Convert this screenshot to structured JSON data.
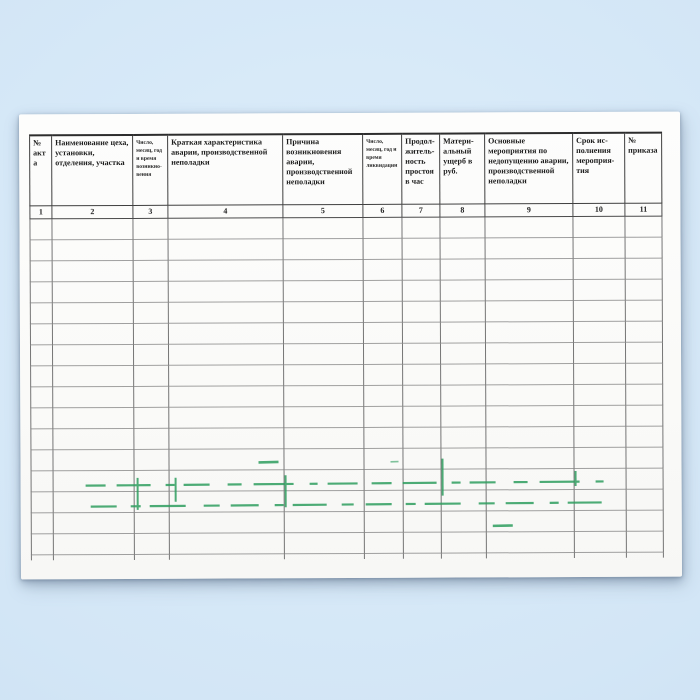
{
  "table": {
    "columns": [
      {
        "num": "1",
        "label": "№ акта",
        "small": false
      },
      {
        "num": "2",
        "label": "Наименование цеха, установки, отделения, участка",
        "small": false
      },
      {
        "num": "3",
        "label": "Число, месяц, год и время возникно­вения",
        "small": true
      },
      {
        "num": "4",
        "label": "Краткая характеристика аварии, производственной неполадки",
        "small": false
      },
      {
        "num": "5",
        "label": "Причина возникновения аварии, производственно­й неполадки",
        "small": false
      },
      {
        "num": "6",
        "label": "Число, месяц, год и время ликвида­ции",
        "small": true
      },
      {
        "num": "7",
        "label": "Продол­житель­ность просто­я в час",
        "small": false
      },
      {
        "num": "8",
        "label": "Матери-альный ущерб в руб.",
        "small": false
      },
      {
        "num": "9",
        "label": "Основные мероприятия по недопущению аварии, производственной неполадки",
        "small": false
      },
      {
        "num": "10",
        "label": "Срок ис-полнения мероприя-тия",
        "small": false
      },
      {
        "num": "11",
        "label": "№ приказа",
        "small": false
      }
    ],
    "empty_row_count": 16
  },
  "annotations": {
    "marker_color": "#2f9e5f",
    "description": "green highlighter dashes along two empty rows"
  },
  "colors": {
    "background_blue": "#d3e6f6",
    "paper": "#fbfbf9",
    "grid_dark": "#3f3f3f",
    "grid_light": "#828282"
  }
}
